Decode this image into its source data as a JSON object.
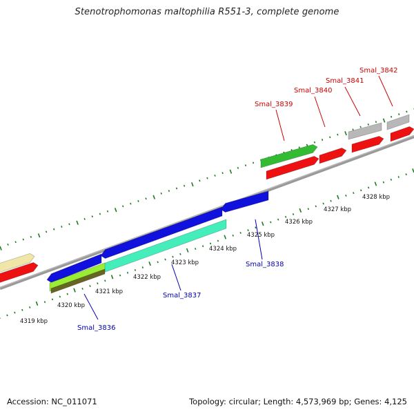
{
  "title": "Stenotrophomonas maltophilia R551-3, complete genome",
  "footer": {
    "accession": "Accession: NC_011071",
    "stats": "Topology: circular; Length: 4,573,969 bp; Genes: 4,125"
  },
  "colors": {
    "backbone": "#8c8c8c",
    "tick": "#1e7a1e",
    "gene_label_forward": "#cc0000",
    "gene_label_reverse": "#0000b0",
    "red": "#ee1111",
    "gray": "#b8b8b8",
    "green": "#33bb33",
    "blue": "#1111dd",
    "aqua": "#44eebb",
    "lime": "#99ee33",
    "olive": "#666622",
    "khaki": "#efe6a8"
  },
  "scale_labels": [
    {
      "kbp": 4319,
      "text": "4319 kbp"
    },
    {
      "kbp": 4320,
      "text": "4320 kbp"
    },
    {
      "kbp": 4321,
      "text": "4321 kbp"
    },
    {
      "kbp": 4322,
      "text": "4322 kbp"
    },
    {
      "kbp": 4323,
      "text": "4323 kbp"
    },
    {
      "kbp": 4324,
      "text": "4324 kbp"
    },
    {
      "kbp": 4325,
      "text": "4325 kbp"
    },
    {
      "kbp": 4326,
      "text": "4326 kbp"
    },
    {
      "kbp": 4327,
      "text": "4327 kbp"
    },
    {
      "kbp": 4328,
      "text": "4328 kbp"
    }
  ],
  "gene_labels": [
    {
      "text": "Smal_3836",
      "strand": "reverse"
    },
    {
      "text": "Smal_3837",
      "strand": "reverse"
    },
    {
      "text": "Smal_3838",
      "strand": "reverse"
    },
    {
      "text": "Smal_3839",
      "strand": "forward"
    },
    {
      "text": "Smal_3840",
      "strand": "forward"
    },
    {
      "text": "Smal_3841",
      "strand": "forward"
    },
    {
      "text": "Smal_3842",
      "strand": "forward"
    }
  ]
}
